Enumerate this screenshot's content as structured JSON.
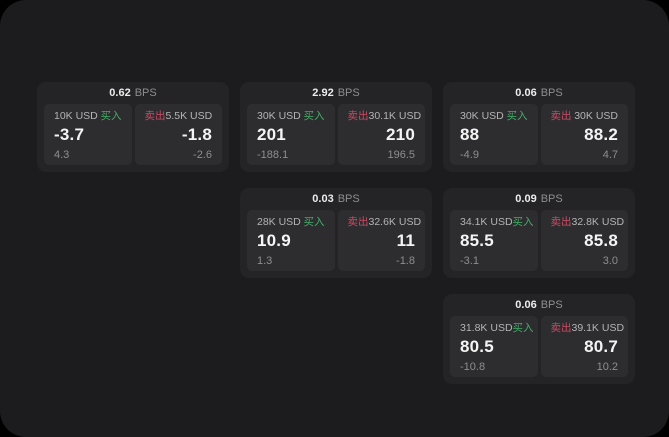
{
  "theme": {
    "background": "#000000",
    "surface": "#1c1c1e",
    "card": "#242427",
    "panel": "#2d2d30",
    "buy_green": "#43ad68",
    "sell_red": "#cb4a62"
  },
  "labels": {
    "bps": "BPS",
    "buy": "买入",
    "sell": "卖出"
  },
  "cards": [
    {
      "bps": "0.62",
      "grid": {
        "col": 0,
        "row": 0
      },
      "buy": {
        "amount": "10K USD",
        "value": "-3.7",
        "sub": "4.3"
      },
      "sell": {
        "amount": "5.5K USD",
        "value": "-1.8",
        "sub": "-2.6"
      }
    },
    {
      "bps": "2.92",
      "grid": {
        "col": 1,
        "row": 0
      },
      "buy": {
        "amount": "30K USD",
        "value": "201",
        "sub": "-188.1"
      },
      "sell": {
        "amount": "30.1K USD",
        "value": "210",
        "sub": "196.5"
      }
    },
    {
      "bps": "0.06",
      "grid": {
        "col": 2,
        "row": 0
      },
      "buy": {
        "amount": "30K USD",
        "value": "88",
        "sub": "-4.9"
      },
      "sell": {
        "amount": "30K USD",
        "value": "88.2",
        "sub": "4.7"
      }
    },
    {
      "bps": "0.03",
      "grid": {
        "col": 1,
        "row": 1
      },
      "buy": {
        "amount": "28K USD",
        "value": "10.9",
        "sub": "1.3"
      },
      "sell": {
        "amount": "32.6K USD",
        "value": "11",
        "sub": "-1.8"
      }
    },
    {
      "bps": "0.09",
      "grid": {
        "col": 2,
        "row": 1
      },
      "buy": {
        "amount": "34.1K USD",
        "value": "85.5",
        "sub": "-3.1"
      },
      "sell": {
        "amount": "32.8K USD",
        "value": "85.8",
        "sub": "3.0"
      }
    },
    {
      "bps": "0.06",
      "grid": {
        "col": 2,
        "row": 2
      },
      "buy": {
        "amount": "31.8K USD",
        "value": "80.5",
        "sub": "-10.8"
      },
      "sell": {
        "amount": "39.1K USD",
        "value": "80.7",
        "sub": "10.2"
      }
    }
  ]
}
